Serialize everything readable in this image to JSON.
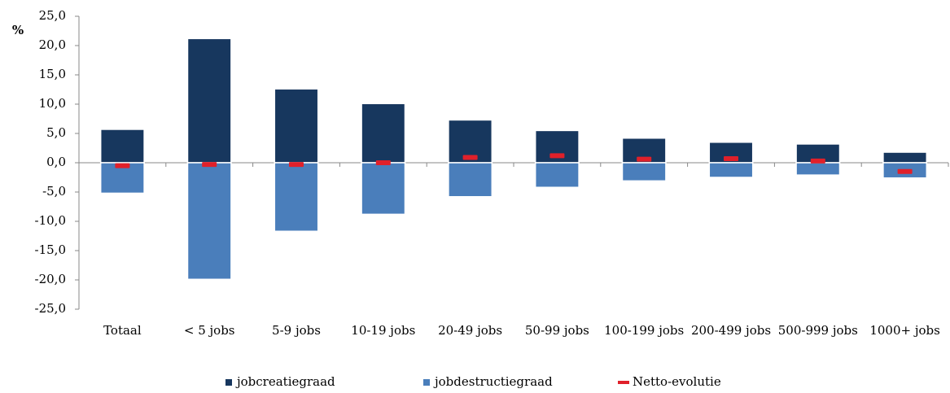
{
  "chart_data": {
    "type": "bar",
    "y_label": "%",
    "categories": [
      "Totaal",
      "< 5 jobs",
      "5-9 jobs",
      "10-19 jobs",
      "20-49 jobs",
      "50-99 jobs",
      "100-199 jobs",
      "200-499 jobs",
      "500-999 jobs",
      "1000+ jobs"
    ],
    "series": [
      {
        "name": "jobcreatiegraad",
        "color": "#17375e",
        "mark": "bar",
        "values": [
          5.7,
          21.2,
          12.6,
          10.1,
          7.3,
          5.5,
          4.2,
          3.5,
          3.2,
          1.8
        ]
      },
      {
        "name": "jobdestructiegraad",
        "color": "#4a7ebb",
        "mark": "bar",
        "values": [
          -5.2,
          -19.9,
          -11.7,
          -8.8,
          -5.8,
          -4.2,
          -3.1,
          -2.5,
          -2.1,
          -2.6
        ]
      },
      {
        "name": "Netto-evolutie",
        "color": "#e0202a",
        "mark": "dash",
        "values": [
          -0.5,
          -0.3,
          -0.3,
          0.0,
          0.9,
          1.2,
          0.6,
          0.7,
          0.3,
          -1.5
        ]
      }
    ],
    "ylim": [
      -25,
      25
    ],
    "yticks": [
      {
        "value": 25,
        "label": "25,0"
      },
      {
        "value": 20,
        "label": "20,0"
      },
      {
        "value": 15,
        "label": "15,0"
      },
      {
        "value": 10,
        "label": "10,0"
      },
      {
        "value": 5,
        "label": "5,0"
      },
      {
        "value": 0,
        "label": "0,0"
      },
      {
        "value": -5,
        "label": "-5,0"
      },
      {
        "value": -10,
        "label": "-10,0"
      },
      {
        "value": -15,
        "label": "-15,0"
      },
      {
        "value": -20,
        "label": "-20,0"
      },
      {
        "value": -25,
        "label": "-25,0"
      }
    ],
    "legend": "bottom"
  }
}
